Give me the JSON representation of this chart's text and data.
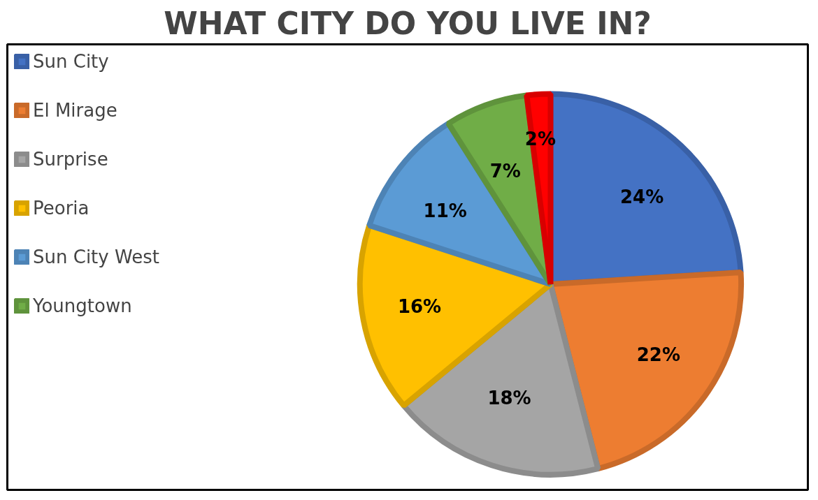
{
  "chart_data": {
    "type": "pie",
    "title": "WHAT CITY DO YOU LIVE IN?",
    "categories": [
      "Sun City",
      "El Mirage",
      "Surprise",
      "Peoria",
      "Sun City West",
      "Youngtown",
      null
    ],
    "values": [
      24,
      22,
      18,
      16,
      11,
      7,
      2
    ],
    "colors": [
      "#4472c4",
      "#ed7d31",
      "#a5a5a5",
      "#ffc000",
      "#5b9bd5",
      "#70ad47",
      "#ff0000"
    ],
    "value_labels": [
      "24%",
      "22%",
      "18%",
      "16%",
      "11%",
      "7%",
      "2%"
    ],
    "legend": "left"
  }
}
